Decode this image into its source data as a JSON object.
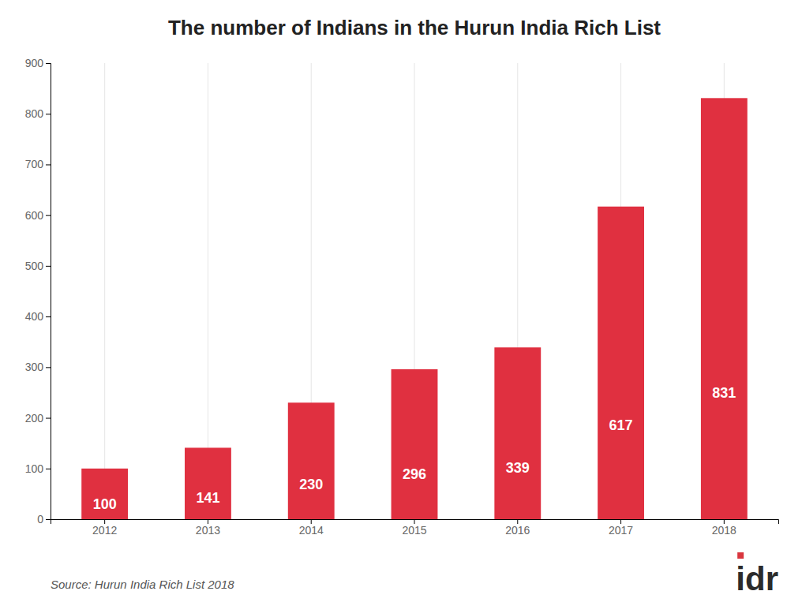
{
  "chart_data": {
    "type": "bar",
    "title": "The number of Indians in the Hurun India Rich List",
    "categories": [
      "2012",
      "2013",
      "2014",
      "2015",
      "2016",
      "2017",
      "2018"
    ],
    "values": [
      100,
      141,
      230,
      296,
      339,
      617,
      831
    ],
    "color": "#E03040",
    "ylim": [
      0,
      900
    ],
    "yticks": [
      0,
      100,
      200,
      300,
      400,
      500,
      600,
      700,
      800,
      900
    ],
    "grid": true,
    "data_labels": true,
    "annotations": [
      "Source: Hurun India Rich List 2018",
      "idr"
    ]
  }
}
